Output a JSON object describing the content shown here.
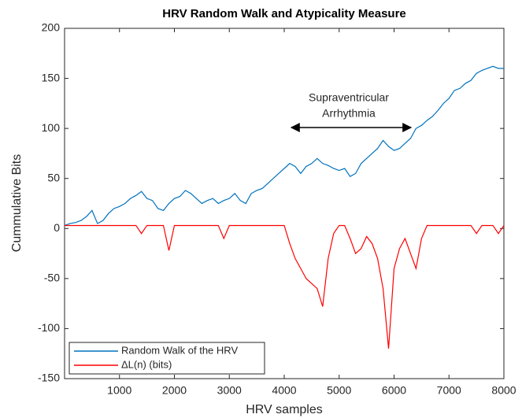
{
  "chart_data": {
    "type": "line",
    "title": "HRV Random Walk and Atypicality Measure",
    "xlabel": "HRV samples",
    "ylabel": "Cummulative Bits",
    "annotation": [
      "Supraventricular",
      "Arrhythmia"
    ],
    "x": [
      0,
      100,
      200,
      300,
      400,
      500,
      600,
      700,
      800,
      900,
      1000,
      1100,
      1200,
      1300,
      1400,
      1500,
      1600,
      1700,
      1800,
      1900,
      2000,
      2100,
      2200,
      2300,
      2400,
      2500,
      2600,
      2700,
      2800,
      2900,
      3000,
      3100,
      3200,
      3300,
      3400,
      3500,
      3600,
      3700,
      3800,
      3900,
      4000,
      4100,
      4200,
      4300,
      4400,
      4500,
      4600,
      4700,
      4800,
      4900,
      5000,
      5100,
      5200,
      5300,
      5400,
      5500,
      5600,
      5700,
      5800,
      5900,
      6000,
      6100,
      6200,
      6300,
      6400,
      6500,
      6600,
      6700,
      6800,
      6900,
      7000,
      7100,
      7200,
      7300,
      7400,
      7500,
      7600,
      7700,
      7800,
      7900,
      8000
    ],
    "series": [
      {
        "name": "Random Walk of the HRV",
        "color": "#0072bd",
        "values": [
          3,
          5,
          6,
          8,
          12,
          18,
          5,
          8,
          15,
          20,
          22,
          25,
          30,
          33,
          37,
          30,
          28,
          20,
          18,
          25,
          30,
          32,
          38,
          35,
          30,
          25,
          28,
          30,
          25,
          28,
          30,
          35,
          28,
          25,
          35,
          38,
          40,
          45,
          50,
          55,
          60,
          65,
          62,
          55,
          62,
          65,
          70,
          65,
          63,
          60,
          58,
          60,
          52,
          55,
          65,
          70,
          75,
          80,
          88,
          82,
          78,
          80,
          85,
          90,
          100,
          103,
          108,
          112,
          118,
          125,
          130,
          138,
          140,
          145,
          148,
          155,
          158,
          160,
          162,
          160,
          160
        ]
      },
      {
        "name": "ΔL(n) (bits)",
        "color": "#ff0000",
        "values": [
          3,
          3,
          3,
          3,
          3,
          3,
          3,
          3,
          3,
          3,
          3,
          3,
          3,
          3,
          -5,
          3,
          3,
          3,
          3,
          -22,
          3,
          3,
          3,
          3,
          3,
          3,
          3,
          3,
          3,
          -10,
          3,
          3,
          3,
          3,
          3,
          3,
          3,
          3,
          3,
          3,
          3,
          -15,
          -30,
          -40,
          -50,
          -55,
          -60,
          -78,
          -30,
          -5,
          3,
          3,
          -10,
          -25,
          -20,
          -8,
          -15,
          -30,
          -60,
          -120,
          -40,
          -20,
          -10,
          -25,
          -40,
          -10,
          3,
          3,
          3,
          3,
          3,
          3,
          3,
          3,
          3,
          -5,
          3,
          3,
          3,
          -5,
          3
        ]
      }
    ],
    "xlim": [
      0,
      8000
    ],
    "ylim": [
      -150,
      200
    ],
    "xticks": [
      1000,
      2000,
      3000,
      4000,
      5000,
      6000,
      7000,
      8000
    ],
    "yticks": [
      -150,
      -100,
      -50,
      0,
      50,
      100,
      150,
      200
    ],
    "legend": "lower left"
  }
}
